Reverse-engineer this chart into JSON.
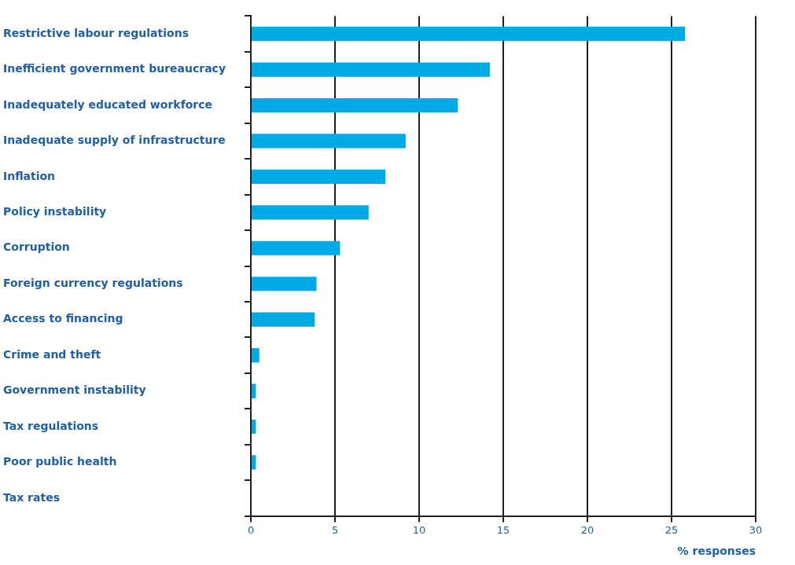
{
  "chart_data": {
    "type": "bar",
    "orientation": "horizontal",
    "xlabel": "% responses",
    "categories": [
      "Restrictive labour regulations",
      "Inefficient government bureaucracy",
      "Inadequately educated workforce",
      "Inadequate supply of infrastructure",
      "Inflation",
      "Policy instability",
      "Corruption",
      "Foreign currency regulations",
      "Access to financing",
      "Crime and theft",
      "Government instability",
      "Tax regulations",
      "Poor public health",
      "Tax rates"
    ],
    "values": [
      25.8,
      14.2,
      12.3,
      9.2,
      8.0,
      7.0,
      5.3,
      3.9,
      3.8,
      0.5,
      0.3,
      0.3,
      0.3,
      0
    ],
    "color": "#00aae7",
    "xlim": [
      0,
      30
    ],
    "xticks": [
      0,
      5,
      10,
      15,
      20,
      25,
      30
    ],
    "grid": "x",
    "legend": false
  }
}
